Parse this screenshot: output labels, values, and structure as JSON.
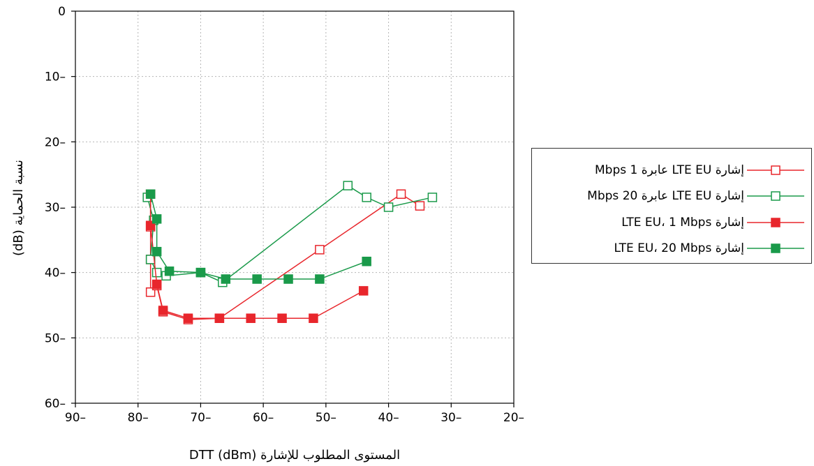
{
  "chart_data": {
    "type": "line",
    "title": "",
    "xlabel": "المستوى المطلوب للإشارة DTT (dBm)",
    "ylabel": "نسبة الحماية (dB)",
    "xlim": [
      -90,
      -20
    ],
    "ylim": [
      -60,
      0
    ],
    "x_ticks": [
      -90,
      -80,
      -70,
      -60,
      -50,
      -40,
      -30,
      -20
    ],
    "x_tick_labels": [
      "90–",
      "80–",
      "70–",
      "60–",
      "50–",
      "40–",
      "30–",
      "20–"
    ],
    "y_ticks": [
      0,
      -10,
      -20,
      -30,
      -40,
      -50,
      -60
    ],
    "y_tick_labels": [
      "0",
      "10–",
      "20–",
      "30–",
      "40–",
      "50–",
      "60–"
    ],
    "grid": true,
    "legend_position": "right",
    "series": [
      {
        "name": "إشارة LTE EU عابرة 1 Mbps",
        "color": "#e8262c",
        "marker": "square-open",
        "points": [
          [
            -78,
            -28
          ],
          [
            -78,
            -33
          ],
          [
            -78,
            -38
          ],
          [
            -78,
            -43
          ],
          [
            -77,
            -42
          ],
          [
            -76,
            -46
          ],
          [
            -72,
            -47.2
          ],
          [
            -67,
            -47
          ],
          [
            -51,
            -36.5
          ],
          [
            -38,
            -28
          ],
          [
            -35,
            -29.8
          ]
        ]
      },
      {
        "name": "إشارة LTE EU عابرة 20 Mbps",
        "color": "#1a9a4a",
        "marker": "square-open",
        "points": [
          [
            -78.5,
            -28.5
          ],
          [
            -77.5,
            -32
          ],
          [
            -78,
            -38
          ],
          [
            -77,
            -40
          ],
          [
            -75.5,
            -40.5
          ],
          [
            -70,
            -40
          ],
          [
            -66.5,
            -41.5
          ],
          [
            -46.5,
            -26.7
          ],
          [
            -43.5,
            -28.5
          ],
          [
            -40,
            -30
          ],
          [
            -33,
            -28.5
          ]
        ]
      },
      {
        "name": "إشارة LTE EU، 1 Mbps",
        "color": "#e8262c",
        "marker": "square-filled",
        "points": [
          [
            -78,
            -28
          ],
          [
            -78,
            -32.8
          ],
          [
            -77,
            -41.8
          ],
          [
            -76,
            -45.8
          ],
          [
            -72,
            -47
          ],
          [
            -67,
            -47
          ],
          [
            -62,
            -47
          ],
          [
            -57,
            -47
          ],
          [
            -52,
            -47
          ],
          [
            -44,
            -42.8
          ]
        ]
      },
      {
        "name": "إشارة LTE EU، 20 Mbps",
        "color": "#1a9a4a",
        "marker": "square-filled",
        "points": [
          [
            -78,
            -28
          ],
          [
            -77,
            -31.8
          ],
          [
            -77,
            -36.8
          ],
          [
            -75,
            -39.8
          ],
          [
            -70,
            -40
          ],
          [
            -66,
            -41
          ],
          [
            -61,
            -41
          ],
          [
            -56,
            -41
          ],
          [
            -51,
            -41
          ],
          [
            -43.5,
            -38.3
          ]
        ]
      }
    ]
  }
}
